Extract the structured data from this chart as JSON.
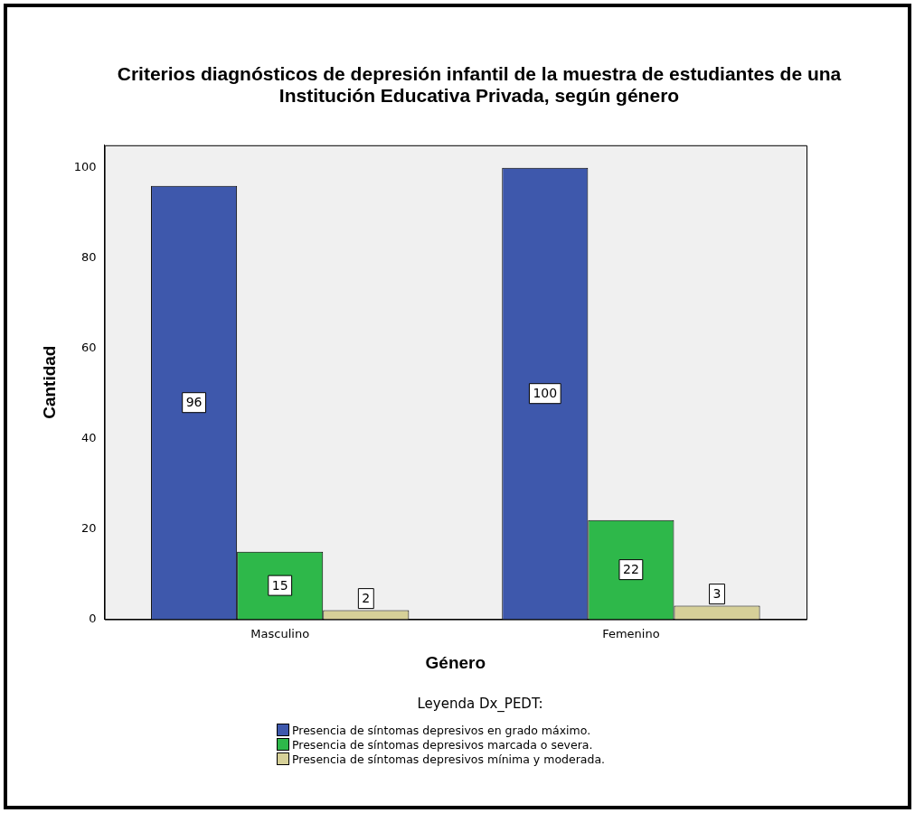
{
  "chart_data": {
    "type": "bar",
    "title": "Criterios diagnósticos de depresión infantil de la muestra de estudiantes de una Institución Educativa Privada, según género",
    "xlabel": "Género",
    "ylabel": "Cantidad",
    "legend_title": "Leyenda Dx_PEDT:",
    "categories": [
      "Masculino",
      "Femenino"
    ],
    "series": [
      {
        "name": "Presencia de síntomas depresivos en grado máximo.",
        "color": "#3e58ac",
        "values": [
          96,
          100
        ]
      },
      {
        "name": "Presencia de síntomas depresivos marcada o severa.",
        "color": "#2eb84a",
        "values": [
          15,
          22
        ]
      },
      {
        "name": "Presencia de síntomas depresivos mínima y moderada.",
        "color": "#d6d098",
        "values": [
          2,
          3
        ]
      }
    ],
    "ylim": [
      0,
      105
    ],
    "yticks": [
      0,
      20,
      40,
      60,
      80,
      100
    ],
    "grid": false,
    "legend": "bottom",
    "data_labels": true
  }
}
